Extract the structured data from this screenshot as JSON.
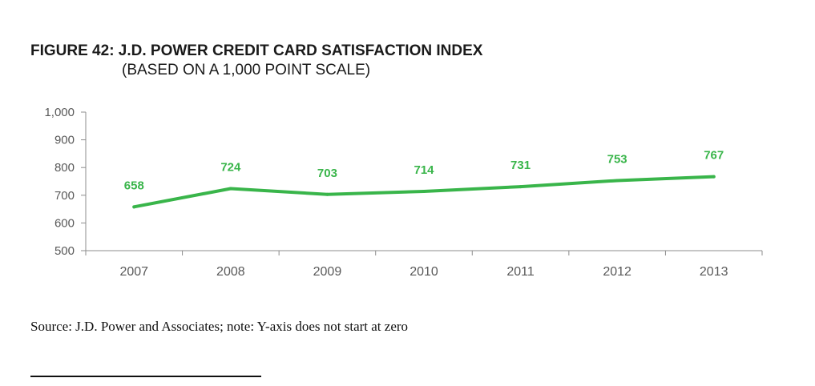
{
  "figure": {
    "title": "FIGURE 42: J.D. POWER CREDIT CARD SATISFACTION INDEX",
    "subtitle": "(BASED ON A 1,000 POINT SCALE)"
  },
  "chart_data": {
    "type": "line",
    "x": [
      "2007",
      "2008",
      "2009",
      "2010",
      "2011",
      "2012",
      "2013"
    ],
    "series": [
      {
        "values": [
          658,
          724,
          703,
          714,
          731,
          753,
          767
        ],
        "data_labels": [
          "658",
          "724",
          "703",
          "714",
          "731",
          "753",
          "767"
        ],
        "color": "#39b54a"
      }
    ],
    "yticks": [
      500,
      600,
      700,
      800,
      900,
      1000
    ],
    "ytick_labels": [
      "500",
      "600",
      "700",
      "800",
      "900",
      "1,000"
    ],
    "ylim": [
      500,
      1000
    ],
    "grid": false,
    "legend": "none"
  },
  "source": {
    "text": "Source: J.D. Power and Associates; note: Y-axis does not start at zero"
  },
  "colors": {
    "series": "#39b54a",
    "axis": "#8c8c8c",
    "tick_label": "#595959",
    "title": "#1a1a1a"
  }
}
